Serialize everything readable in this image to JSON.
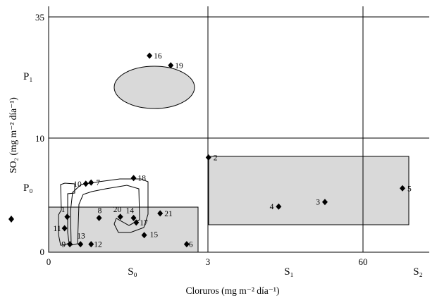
{
  "chart_data": {
    "type": "scatter",
    "xlabel": "Cloruros (mg m⁻² día⁻¹)",
    "ylabel": "SO₂ (mg m⁻² día⁻¹)",
    "x_ticks": [
      "0",
      "3",
      "60"
    ],
    "y_ticks": [
      "0",
      "10",
      "35"
    ],
    "x_categories": [
      "S₀",
      "S₁",
      "S₂"
    ],
    "y_categories": [
      "P₀",
      "P₁"
    ],
    "points": [
      {
        "label": "1",
        "x": 0.35,
        "y": 3.1
      },
      {
        "label": "2",
        "x": 3.2,
        "y": 8.3
      },
      {
        "label": "3",
        "x": 46,
        "y": 4.4
      },
      {
        "label": "4",
        "x": 29,
        "y": 4.0
      },
      {
        "label": "5",
        "x": 68,
        "y": 5.6
      },
      {
        "label": "6",
        "x": 2.6,
        "y": 0.7
      },
      {
        "label": "7",
        "x": 0.8,
        "y": 6.1
      },
      {
        "label": "8",
        "x": 0.95,
        "y": 3.0
      },
      {
        "label": "9",
        "x": 0.4,
        "y": 0.7
      },
      {
        "label": "10",
        "x": 0.7,
        "y": 6.0
      },
      {
        "label": "11",
        "x": 0.3,
        "y": 2.1
      },
      {
        "label": "12",
        "x": 0.8,
        "y": 0.7
      },
      {
        "label": "13",
        "x": 0.6,
        "y": 0.7
      },
      {
        "label": "14",
        "x": 1.6,
        "y": 3.0
      },
      {
        "label": "15",
        "x": 1.8,
        "y": 1.5
      },
      {
        "label": "16",
        "x": 1.9,
        "y": 27
      },
      {
        "label": "17",
        "x": 1.65,
        "y": 2.6
      },
      {
        "label": "18",
        "x": 1.6,
        "y": 6.5
      },
      {
        "label": "19",
        "x": 2.3,
        "y": 25
      },
      {
        "label": "20",
        "x": 1.35,
        "y": 3.1
      },
      {
        "label": "21",
        "x": 2.1,
        "y": 3.4
      }
    ]
  }
}
